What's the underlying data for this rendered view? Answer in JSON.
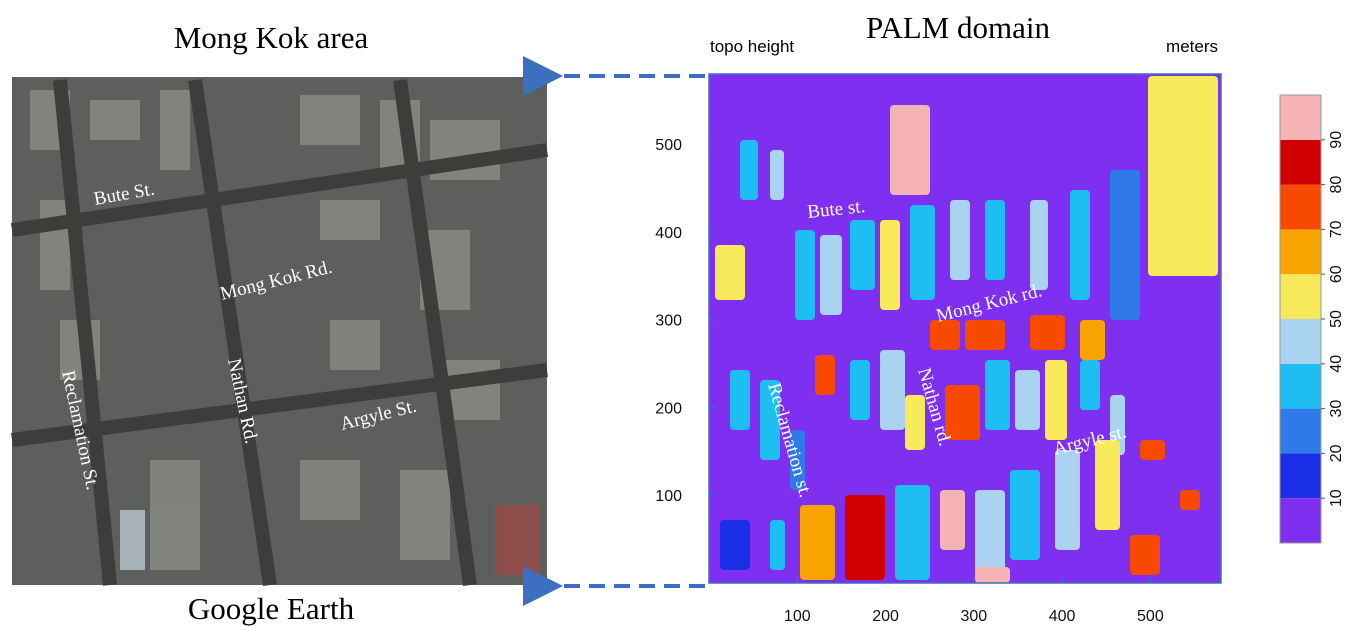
{
  "left_panel": {
    "title": "Mong Kok area",
    "caption": "Google Earth",
    "labels": [
      "Bute St.",
      "Mong Kok Rd.",
      "Nathan Rd.",
      "Argyle  St.",
      "Reclamation St."
    ]
  },
  "right_panel": {
    "title": "PALM domain",
    "left_label": "topo height",
    "right_label": "meters",
    "xlim": [
      0,
      580
    ],
    "ylim": [
      0,
      580
    ],
    "xticks": [
      100,
      200,
      300,
      400,
      500
    ],
    "yticks": [
      100,
      200,
      300,
      400,
      500
    ],
    "labels": [
      "Bute st.",
      "Mong Kok rd.",
      "Nathan rd.",
      "Argyle  st.",
      "Reclamation st."
    ],
    "colorbar": {
      "levels": [
        10,
        20,
        30,
        40,
        50,
        60,
        70,
        80,
        90
      ],
      "colors": [
        "#7f2ff0",
        "#1a2ee6",
        "#2f7ae8",
        "#1ebef2",
        "#a9d3f0",
        "#f8e95a",
        "#f7a300",
        "#f74a00",
        "#d10000",
        "#f6b3b3"
      ]
    }
  }
}
